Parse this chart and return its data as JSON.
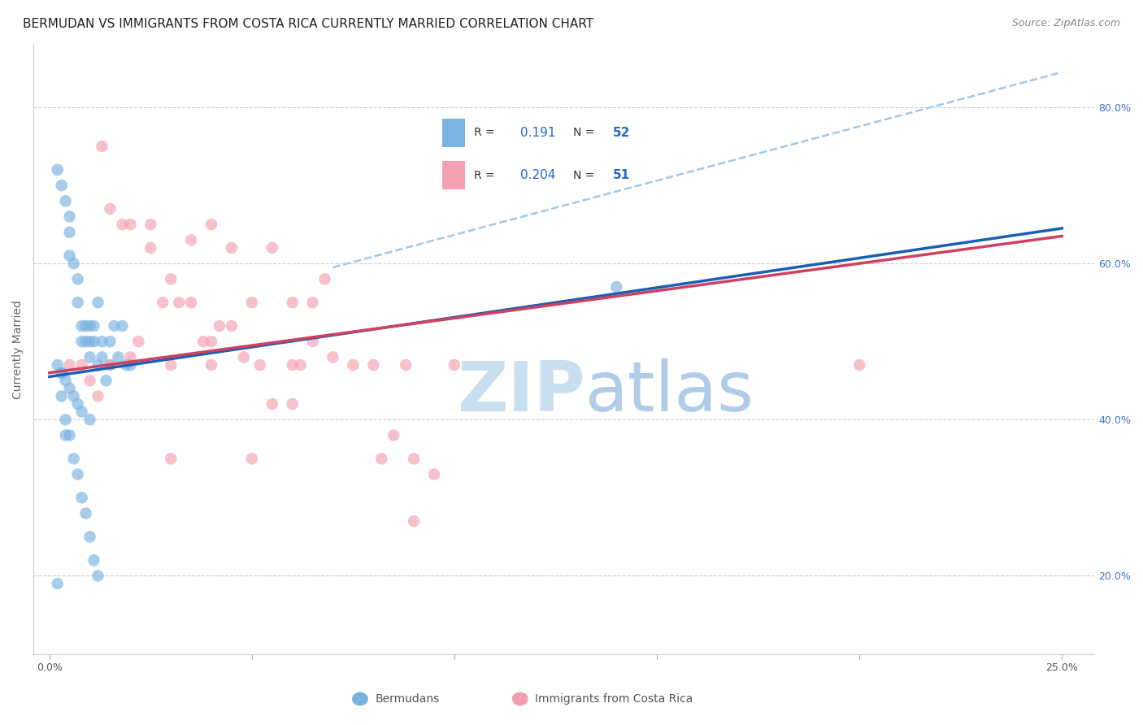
{
  "title": "BERMUDAN VS IMMIGRANTS FROM COSTA RICA CURRENTLY MARRIED CORRELATION CHART",
  "source_text": "Source: ZipAtlas.com",
  "ylabel": "Currently Married",
  "xlim": [
    0.0,
    0.25
  ],
  "ylim": [
    0.1,
    0.86
  ],
  "plot_ylim": [
    0.1,
    0.86
  ],
  "yticks": [
    0.2,
    0.4,
    0.6,
    0.8
  ],
  "xticks": [
    0.0,
    0.05,
    0.1,
    0.15,
    0.2,
    0.25
  ],
  "xtick_labels": [
    "0.0%",
    "",
    "",
    "",
    "",
    "25.0%"
  ],
  "right_ytick_labels": [
    "20.0%",
    "40.0%",
    "60.0%",
    "80.0%"
  ],
  "blue_scatter_x": [
    0.002,
    0.003,
    0.004,
    0.005,
    0.005,
    0.005,
    0.006,
    0.007,
    0.007,
    0.008,
    0.008,
    0.009,
    0.009,
    0.01,
    0.01,
    0.01,
    0.011,
    0.011,
    0.012,
    0.012,
    0.013,
    0.013,
    0.014,
    0.015,
    0.015,
    0.016,
    0.017,
    0.018,
    0.019,
    0.02,
    0.003,
    0.004,
    0.005,
    0.006,
    0.007,
    0.008,
    0.009,
    0.01,
    0.011,
    0.012,
    0.002,
    0.003,
    0.004,
    0.005,
    0.006,
    0.007,
    0.008,
    0.01,
    0.14,
    0.003,
    0.002,
    0.004
  ],
  "blue_scatter_y": [
    0.72,
    0.7,
    0.68,
    0.66,
    0.64,
    0.61,
    0.6,
    0.58,
    0.55,
    0.52,
    0.5,
    0.52,
    0.5,
    0.52,
    0.5,
    0.48,
    0.5,
    0.52,
    0.55,
    0.47,
    0.5,
    0.48,
    0.45,
    0.5,
    0.47,
    0.52,
    0.48,
    0.52,
    0.47,
    0.47,
    0.43,
    0.4,
    0.38,
    0.35,
    0.33,
    0.3,
    0.28,
    0.25,
    0.22,
    0.2,
    0.47,
    0.46,
    0.45,
    0.44,
    0.43,
    0.42,
    0.41,
    0.4,
    0.57,
    0.46,
    0.19,
    0.38
  ],
  "pink_scatter_x": [
    0.005,
    0.008,
    0.01,
    0.012,
    0.013,
    0.015,
    0.015,
    0.018,
    0.02,
    0.02,
    0.022,
    0.025,
    0.025,
    0.028,
    0.03,
    0.03,
    0.032,
    0.035,
    0.035,
    0.038,
    0.04,
    0.04,
    0.042,
    0.045,
    0.045,
    0.048,
    0.05,
    0.052,
    0.055,
    0.055,
    0.06,
    0.06,
    0.062,
    0.065,
    0.065,
    0.068,
    0.07,
    0.075,
    0.08,
    0.082,
    0.085,
    0.088,
    0.09,
    0.095,
    0.1,
    0.04,
    0.06,
    0.05,
    0.2,
    0.09,
    0.03
  ],
  "pink_scatter_y": [
    0.47,
    0.47,
    0.45,
    0.43,
    0.75,
    0.67,
    0.47,
    0.65,
    0.65,
    0.48,
    0.5,
    0.62,
    0.65,
    0.55,
    0.58,
    0.47,
    0.55,
    0.63,
    0.55,
    0.5,
    0.65,
    0.5,
    0.52,
    0.62,
    0.52,
    0.48,
    0.55,
    0.47,
    0.42,
    0.62,
    0.55,
    0.42,
    0.47,
    0.55,
    0.5,
    0.58,
    0.48,
    0.47,
    0.47,
    0.35,
    0.38,
    0.47,
    0.35,
    0.33,
    0.47,
    0.47,
    0.47,
    0.35,
    0.47,
    0.27,
    0.35
  ],
  "blue_color": "#7ab3e0",
  "pink_color": "#f4a0b0",
  "blue_line_color": "#1a5fb4",
  "pink_line_color": "#d04060",
  "dashed_line_color": "#a0c8e8",
  "blue_line_x0": 0.0,
  "blue_line_y0": 0.455,
  "blue_line_x1": 0.25,
  "blue_line_y1": 0.645,
  "pink_line_x0": 0.0,
  "pink_line_y0": 0.46,
  "pink_line_x1": 0.25,
  "pink_line_y1": 0.635,
  "dash_line_x0": 0.07,
  "dash_line_y0": 0.595,
  "dash_line_x1": 0.25,
  "dash_line_y1": 0.845,
  "legend_r_blue": "0.191",
  "legend_n_blue": "52",
  "legend_r_pink": "0.204",
  "legend_n_pink": "51",
  "legend_label_blue": "Bermudans",
  "legend_label_pink": "Immigrants from Costa Rica",
  "watermark_zip": "ZIP",
  "watermark_atlas": "atlas",
  "watermark_color": "#d0e4f4",
  "title_fontsize": 11,
  "axis_label_fontsize": 10,
  "tick_fontsize": 9,
  "source_fontsize": 9
}
